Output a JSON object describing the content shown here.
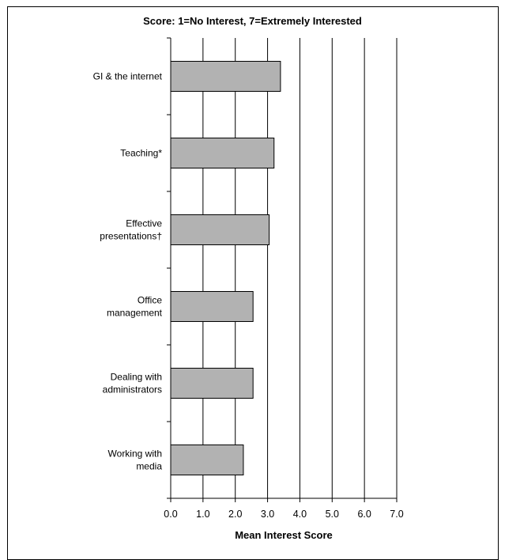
{
  "chart_data": {
    "type": "bar",
    "orientation": "horizontal",
    "title": "Score: 1=No Interest, 7=Extremely Interested",
    "xlabel": "Mean Interest Score",
    "ylabel": "",
    "xlim": [
      0,
      7
    ],
    "x_ticks": [
      "0.0",
      "1.0",
      "2.0",
      "3.0",
      "4.0",
      "5.0",
      "6.0",
      "7.0"
    ],
    "grid": true,
    "categories": [
      [
        "GI & the internet"
      ],
      [
        "Teaching*"
      ],
      [
        "Effective",
        "presentations†"
      ],
      [
        "Office",
        "management"
      ],
      [
        "Dealing with",
        "administrators"
      ],
      [
        "Working with",
        "media"
      ]
    ],
    "values": [
      3.4,
      3.2,
      3.05,
      2.55,
      2.55,
      2.25
    ],
    "colors": {
      "bar_fill": "#b2b2b2",
      "bar_stroke": "#000000",
      "grid": "#000000"
    }
  }
}
